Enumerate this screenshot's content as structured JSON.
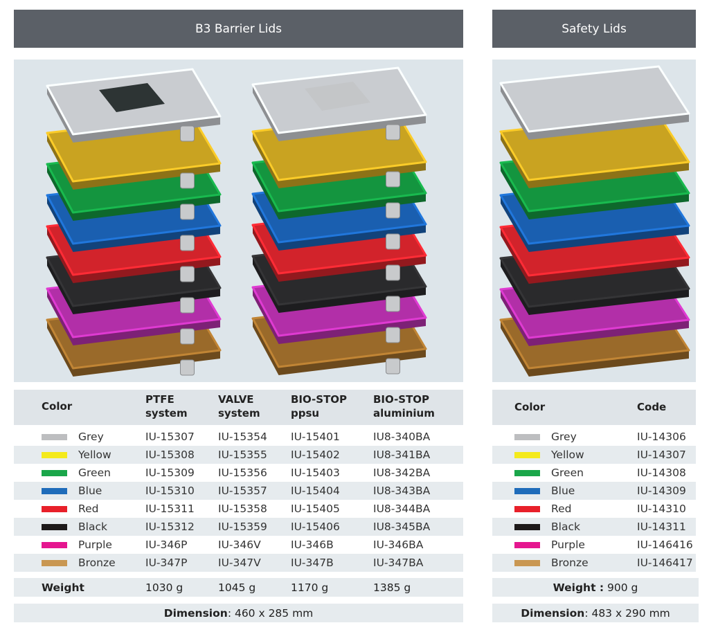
{
  "left": {
    "title": "B3 Barrier Lids",
    "headers": [
      "Color",
      "PTFE\nsystem",
      "VALVE\nsystem",
      "BIO-STOP\nppsu",
      "BIO-STOP\naluminium"
    ],
    "header_lines": [
      [
        "Color"
      ],
      [
        "PTFE",
        "system"
      ],
      [
        "VALVE",
        "system"
      ],
      [
        "BIO-STOP",
        "ppsu"
      ],
      [
        "BIO-STOP",
        "aluminium"
      ]
    ],
    "rows": [
      {
        "color": "Grey",
        "swatch": "#bdbec0",
        "codes": [
          "IU-15307",
          "IU-15354",
          "IU-15401",
          "IU8-340BA"
        ]
      },
      {
        "color": "Yellow",
        "swatch": "#f4ea1c",
        "codes": [
          "IU-15308",
          "IU-15355",
          "IU-15402",
          "IU8-341BA"
        ]
      },
      {
        "color": "Green",
        "swatch": "#1aa64a",
        "codes": [
          "IU-15309",
          "IU-15356",
          "IU-15403",
          "IU8-342BA"
        ]
      },
      {
        "color": "Blue",
        "swatch": "#1f6cba",
        "codes": [
          "IU-15310",
          "IU-15357",
          "IU-15404",
          "IU8-343BA"
        ]
      },
      {
        "color": "Red",
        "swatch": "#e8202a",
        "codes": [
          "IU-15311",
          "IU-15358",
          "IU-15405",
          "IU8-344BA"
        ]
      },
      {
        "color": "Black",
        "swatch": "#1e1a1a",
        "codes": [
          "IU-15312",
          "IU-15359",
          "IU-15406",
          "IU8-345BA"
        ]
      },
      {
        "color": "Purple",
        "swatch": "#e5168f",
        "codes": [
          "IU-346P",
          "IU-346V",
          "IU-346B",
          "IU-346BA"
        ]
      },
      {
        "color": "Bronze",
        "swatch": "#c99752",
        "codes": [
          "IU-347P",
          "IU-347V",
          "IU-347B",
          "IU-347BA"
        ]
      }
    ],
    "weight_label": "Weight",
    "weights": [
      "1030 g",
      "1045 g",
      "1170 g",
      "1385 g"
    ],
    "dimension_label": "Dimension",
    "dimension_value": ": 460 x 285 mm"
  },
  "right": {
    "title": "Safety Lids",
    "headers": [
      "Color",
      "Code"
    ],
    "rows": [
      {
        "color": "Grey",
        "swatch": "#bdbec0",
        "code": "IU-14306"
      },
      {
        "color": "Yellow",
        "swatch": "#f4ea1c",
        "code": "IU-14307"
      },
      {
        "color": "Green",
        "swatch": "#1aa64a",
        "code": "IU-14308"
      },
      {
        "color": "Blue",
        "swatch": "#1f6cba",
        "code": "IU-14309"
      },
      {
        "color": "Red",
        "swatch": "#e8202a",
        "code": "IU-14310"
      },
      {
        "color": "Black",
        "swatch": "#1e1a1a",
        "code": "IU-14311"
      },
      {
        "color": "Purple",
        "swatch": "#e5168f",
        "code": "IU-146416"
      },
      {
        "color": "Bronze",
        "swatch": "#c99752",
        "code": "IU-146417"
      }
    ],
    "weight_label": "Weight :",
    "weight_value": " 900 g",
    "dimension_label": "Dimension",
    "dimension_value": ": 483 x 290 mm"
  },
  "lid_colors": [
    "#c9ccd0",
    "#c9a321",
    "#14953f",
    "#1a5fb0",
    "#d2232b",
    "#2a2a2c",
    "#b22fa8",
    "#9a6a2a"
  ]
}
